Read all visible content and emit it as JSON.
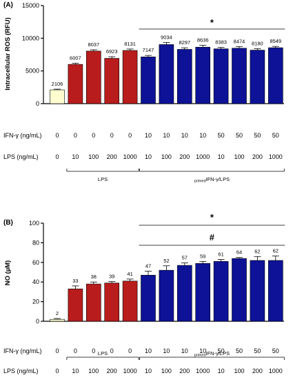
{
  "chart_data": [
    {
      "type": "bar",
      "panel": "(A)",
      "ylabel": "Intracellular ROS (RFU)",
      "ylim": [
        0,
        15000
      ],
      "yticks": [
        "0",
        "5000",
        "10000",
        "15000"
      ],
      "values": [
        2106,
        6007,
        8037,
        6923,
        8131,
        7147,
        9034,
        8297,
        8636,
        8383,
        8474,
        8180,
        8549
      ],
      "errors": [
        110,
        180,
        200,
        250,
        220,
        230,
        320,
        240,
        300,
        220,
        260,
        220,
        200
      ],
      "value_labels": [
        "2106",
        "6007",
        "8037",
        "6923",
        "8131",
        "7147",
        "9034",
        "8297",
        "8636",
        "8383",
        "8474",
        "8180",
        "8549"
      ],
      "colors": [
        "#fdfdd0",
        "#b81c1c",
        "#b81c1c",
        "#b81c1c",
        "#b81c1c",
        "#0d1296",
        "#0d1296",
        "#0d1296",
        "#0d1296",
        "#0d1296",
        "#0d1296",
        "#0d1296",
        "#0d1296"
      ],
      "significance": [
        {
          "symbol": "*",
          "from_bar": 5,
          "to_bar": 12
        }
      ],
      "ifn_label": "IFN-γ (ng/mL)",
      "ifn_values": [
        "0",
        "0",
        "0",
        "0",
        "0",
        "10",
        "10",
        "10",
        "10",
        "50",
        "50",
        "50",
        "50"
      ],
      "lps_label": "LPS (ng/mL)",
      "lps_values": [
        "0",
        "10",
        "100",
        "200",
        "1000",
        "10",
        "100",
        "200",
        "1000",
        "10",
        "100",
        "200",
        "1000"
      ],
      "groups": [
        {
          "label": "LPS",
          "prefix": "",
          "from_bar": 1,
          "to_bar": 4
        },
        {
          "label": "IFN-γ/LPS",
          "prefix": "primed",
          "from_bar": 5,
          "to_bar": 12
        }
      ]
    },
    {
      "type": "bar",
      "panel": "(B)",
      "ylabel": "NO (µM)",
      "ylim": [
        0,
        100
      ],
      "yticks": [
        "0",
        "20",
        "40",
        "60",
        "80",
        "100"
      ],
      "values": [
        2,
        33,
        38,
        39,
        41,
        47,
        52,
        57,
        59,
        61,
        64,
        62,
        62
      ],
      "errors": [
        0.8,
        3,
        2,
        1.5,
        2,
        4,
        4.5,
        2.5,
        2,
        2,
        1,
        4,
        4.5
      ],
      "value_labels": [
        "2",
        "33",
        "38",
        "39",
        "41",
        "47",
        "52",
        "57",
        "59",
        "61",
        "64",
        "62",
        "62"
      ],
      "colors": [
        "#fdfdd0",
        "#b81c1c",
        "#b81c1c",
        "#b81c1c",
        "#b81c1c",
        "#0d1296",
        "#0d1296",
        "#0d1296",
        "#0d1296",
        "#0d1296",
        "#0d1296",
        "#0d1296",
        "#0d1296"
      ],
      "significance": [
        {
          "symbol": "*",
          "from_bar": 5,
          "to_bar": 12
        },
        {
          "symbol": "#",
          "from_bar": 5,
          "to_bar": 12
        }
      ],
      "ifn_label": "IFN-γ (ng/mL)",
      "ifn_values": [
        "0",
        "0",
        "0",
        "0",
        "0",
        "10",
        "10",
        "10",
        "10",
        "50",
        "50",
        "50",
        "50"
      ],
      "lps_label": "LPS (ng/mL)",
      "lps_values": [
        "0",
        "10",
        "100",
        "200",
        "1000",
        "10",
        "100",
        "200",
        "1000",
        "10",
        "100",
        "200",
        "1000"
      ],
      "groups": [
        {
          "label": "LPS",
          "prefix": "",
          "from_bar": 1,
          "to_bar": 4
        },
        {
          "label": "IFN-γ/LPS",
          "prefix": "primed",
          "from_bar": 5,
          "to_bar": 12
        }
      ]
    }
  ]
}
